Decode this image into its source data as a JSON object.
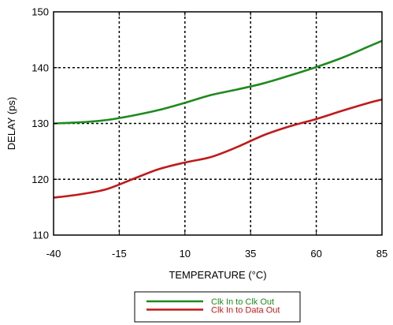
{
  "chart_data": {
    "type": "line",
    "xlabel": "TEMPERATURE (°C)",
    "ylabel": "DELAY (ps)",
    "xlim": [
      -40,
      85
    ],
    "ylim": [
      110,
      150
    ],
    "xticks": [
      -40,
      -15,
      10,
      35,
      60,
      85
    ],
    "yticks": [
      110,
      120,
      130,
      140,
      150
    ],
    "grid": true,
    "legend_position": "bottom-center",
    "series": [
      {
        "name": "Clk In to Clk Out",
        "color": "#1f8a1f",
        "x": [
          -40,
          -30,
          -20,
          -10,
          0,
          10,
          20,
          30,
          40,
          50,
          60,
          70,
          80,
          85
        ],
        "y": [
          130.0,
          130.2,
          130.6,
          131.4,
          132.4,
          133.7,
          135.1,
          136.1,
          137.2,
          138.6,
          140.1,
          141.8,
          143.8,
          144.8
        ]
      },
      {
        "name": "Clk In to Data Out",
        "color": "#c01a1a",
        "x": [
          -40,
          -30,
          -20,
          -10,
          0,
          10,
          20,
          30,
          40,
          50,
          60,
          70,
          80,
          85
        ],
        "y": [
          116.7,
          117.3,
          118.2,
          120.0,
          121.8,
          123.0,
          124.0,
          125.8,
          127.9,
          129.5,
          130.8,
          132.3,
          133.7,
          134.3
        ]
      }
    ]
  }
}
